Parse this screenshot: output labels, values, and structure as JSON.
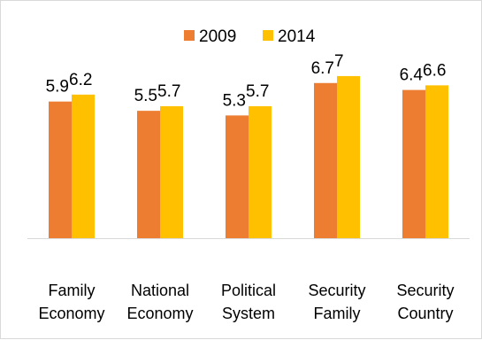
{
  "chart_data": {
    "type": "bar",
    "title": "",
    "xlabel": "",
    "ylabel": "",
    "categories": [
      [
        "Family",
        "Economy"
      ],
      [
        "National",
        "Economy"
      ],
      [
        "Political",
        "System"
      ],
      [
        "Security",
        "Family"
      ],
      [
        "Security",
        "Country"
      ]
    ],
    "series": [
      {
        "name": "2009",
        "color": "#ED7D31",
        "values": [
          5.9,
          5.5,
          5.3,
          6.7,
          6.4
        ]
      },
      {
        "name": "2014",
        "color": "#FFC000",
        "values": [
          6.2,
          5.7,
          5.7,
          7,
          6.6
        ]
      }
    ],
    "ylim": [
      0,
      7.8
    ],
    "grid": false,
    "legend": "top-center",
    "axis_color": "#d9d9d9"
  }
}
